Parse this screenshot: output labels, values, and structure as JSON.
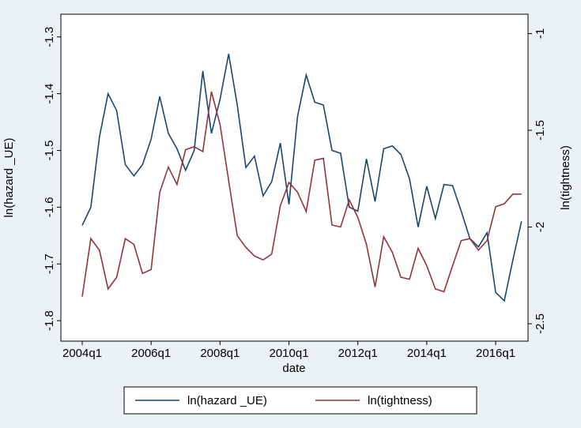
{
  "chart_data": {
    "type": "line",
    "x": [
      2004,
      2004.25,
      2004.5,
      2004.75,
      2005,
      2005.25,
      2005.5,
      2005.75,
      2006,
      2006.25,
      2006.5,
      2006.75,
      2007,
      2007.25,
      2007.5,
      2007.75,
      2008,
      2008.25,
      2008.5,
      2008.75,
      2009,
      2009.25,
      2009.5,
      2009.75,
      2010,
      2010.25,
      2010.5,
      2010.75,
      2011,
      2011.25,
      2011.5,
      2011.75,
      2012,
      2012.25,
      2012.5,
      2012.75,
      2013,
      2013.25,
      2013.5,
      2013.75,
      2014,
      2014.25,
      2014.5,
      2014.75,
      2015,
      2015.25,
      2015.5,
      2015.75,
      2016,
      2016.25,
      2016.5,
      2016.75
    ],
    "series": [
      {
        "name": "ln(hazard _UE)",
        "color": "#1a476f",
        "values": [
          -1.632,
          -1.6,
          -1.476,
          -1.4,
          -1.43,
          -1.525,
          -1.545,
          -1.525,
          -1.48,
          -1.405,
          -1.47,
          -1.497,
          -1.535,
          -1.5,
          -1.36,
          -1.47,
          -1.41,
          -1.33,
          -1.42,
          -1.53,
          -1.51,
          -1.58,
          -1.555,
          -1.487,
          -1.595,
          -1.44,
          -1.367,
          -1.415,
          -1.42,
          -1.5,
          -1.505,
          -1.6,
          -1.607,
          -1.515,
          -1.59,
          -1.497,
          -1.492,
          -1.507,
          -1.55,
          -1.635,
          -1.563,
          -1.62,
          -1.56,
          -1.562,
          -1.607,
          -1.655,
          -1.67,
          -1.645,
          -1.75,
          -1.765,
          -1.693,
          -1.625
        ]
      },
      {
        "name": "ln(tightness)",
        "color": "#90353b",
        "axis": "y2",
        "values": [
          -2.36,
          -2.06,
          -2.12,
          -2.32,
          -2.26,
          -2.06,
          -2.09,
          -2.24,
          -2.22,
          -1.82,
          -1.69,
          -1.78,
          -1.6,
          -1.585,
          -1.61,
          -1.3,
          -1.47,
          -1.76,
          -2.045,
          -2.105,
          -2.15,
          -2.17,
          -2.14,
          -1.89,
          -1.77,
          -1.82,
          -1.92,
          -1.655,
          -1.645,
          -1.99,
          -2.0,
          -1.86,
          -1.95,
          -2.09,
          -2.31,
          -2.05,
          -2.13,
          -2.26,
          -2.27,
          -2.11,
          -2.2,
          -2.32,
          -2.335,
          -2.2,
          -2.07,
          -2.06,
          -2.12,
          -2.07,
          -1.895,
          -1.88,
          -1.83,
          -1.83
        ]
      }
    ],
    "xlabel": "date",
    "ylabel": "ln(hazard _UE)",
    "y2label": "ln(tightness)",
    "xlim": [
      2003.38,
      2016.94
    ],
    "xticks": [
      {
        "value": 2004,
        "label": "2004q1"
      },
      {
        "value": 2006,
        "label": "2006q1"
      },
      {
        "value": 2008,
        "label": "2008q1"
      },
      {
        "value": 2010,
        "label": "2010q1"
      },
      {
        "value": 2012,
        "label": "2012q1"
      },
      {
        "value": 2014,
        "label": "2014q1"
      },
      {
        "value": 2016,
        "label": "2016q1"
      }
    ],
    "ylim": [
      -1.836,
      -1.26
    ],
    "yticks": [
      -1.3,
      -1.4,
      -1.5,
      -1.6,
      -1.7,
      -1.8
    ],
    "y2lim": [
      -2.59,
      -0.9
    ],
    "y2ticks": [
      -1,
      -1.5,
      -2,
      -2.5
    ],
    "legend": "bottom"
  }
}
